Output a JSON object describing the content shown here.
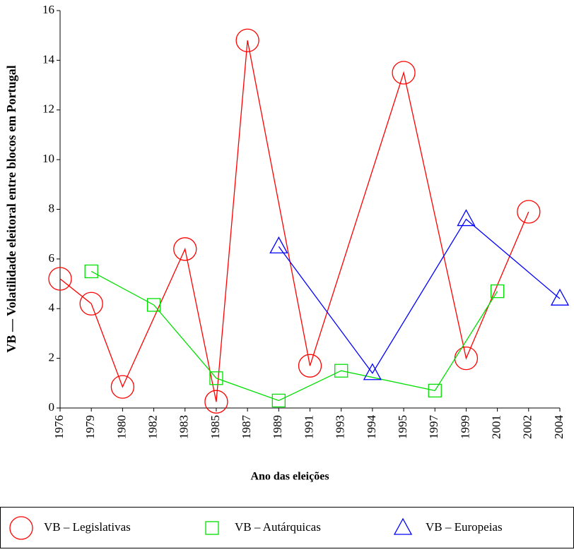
{
  "chart_data": {
    "type": "line",
    "x_label": "Ano das eleições",
    "y_label": "VB — Volatilidade eleitoral entre blocos em Portugal",
    "categories": [
      "1976",
      "1979",
      "1980",
      "1982",
      "1983",
      "1985",
      "1987",
      "1989",
      "1991",
      "1993",
      "1994",
      "1995",
      "1997",
      "1999",
      "2001",
      "2002",
      "2004"
    ],
    "ylim": [
      0,
      16
    ],
    "yticks": [
      0,
      2,
      4,
      6,
      8,
      10,
      12,
      14,
      16
    ],
    "series": [
      {
        "name": "VB – Legislativas",
        "color": "#ff0000",
        "marker": "circle",
        "x": [
          "1976",
          "1979",
          "1980",
          "1983",
          "1985",
          "1987",
          "1991",
          "1995",
          "1999",
          "2002"
        ],
        "values": [
          5.2,
          4.2,
          0.85,
          6.4,
          0.25,
          14.8,
          1.7,
          13.5,
          2.0,
          7.9
        ]
      },
      {
        "name": "VB – Autárquicas",
        "color": "#00e000",
        "marker": "square",
        "x": [
          "1979",
          "1982",
          "1985",
          "1989",
          "1993",
          "1997",
          "2001"
        ],
        "values": [
          5.5,
          4.15,
          1.2,
          0.3,
          1.5,
          0.7,
          4.7
        ]
      },
      {
        "name": "VB – Europeias",
        "color": "#0000ff",
        "marker": "triangle",
        "x": [
          "1989",
          "1994",
          "1999",
          "2004"
        ],
        "values": [
          6.5,
          1.4,
          7.6,
          4.4
        ]
      }
    ]
  }
}
